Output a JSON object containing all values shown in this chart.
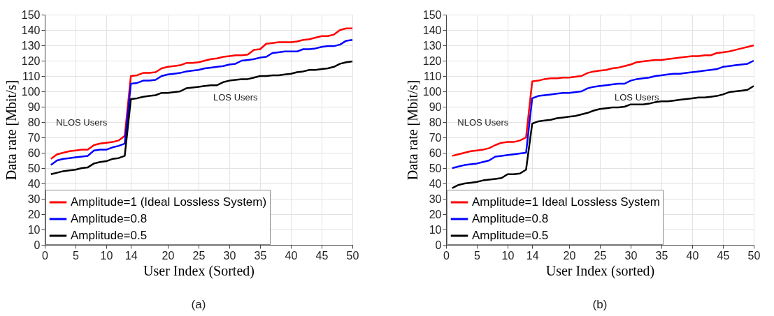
{
  "chart_data": [
    {
      "type": "line",
      "xlabel": "User Index (Sorted)",
      "ylabel": "Data rate [Mbit/s]",
      "x": [
        1,
        2,
        3,
        4,
        5,
        6,
        7,
        8,
        9,
        10,
        11,
        12,
        13,
        14,
        15,
        16,
        17,
        18,
        19,
        20,
        21,
        22,
        23,
        24,
        25,
        26,
        27,
        28,
        29,
        30,
        31,
        32,
        33,
        34,
        35,
        36,
        37,
        38,
        39,
        40,
        41,
        42,
        43,
        44,
        45,
        46,
        47,
        48,
        49,
        50
      ],
      "series": [
        {
          "name": "Amplitude=1 (Ideal Lossless System)",
          "color": "#ff0000",
          "values": [
            56,
            59,
            60,
            61,
            61.5,
            62,
            62,
            65,
            66,
            66.5,
            67,
            68,
            71,
            110,
            110.5,
            112,
            112,
            112.5,
            115,
            116,
            116.5,
            117,
            118.5,
            118.5,
            119,
            120,
            121,
            121.5,
            122.5,
            123,
            123.5,
            123.5,
            124,
            127,
            127.5,
            131,
            131.5,
            132,
            132,
            132,
            132.5,
            133.5,
            134,
            135,
            136,
            136,
            137,
            140,
            141,
            141
          ]
        },
        {
          "name": "Amplitude=0.8",
          "color": "#0000ff",
          "values": [
            52,
            55,
            56,
            56.5,
            57,
            57.5,
            58,
            61.5,
            62,
            62,
            63.5,
            64.5,
            66,
            105,
            105.5,
            107,
            107,
            107.5,
            110,
            111,
            111.5,
            112,
            113,
            113.5,
            114,
            115,
            115.5,
            116,
            116.5,
            117.5,
            118,
            120,
            120.5,
            121,
            122,
            122.5,
            125,
            125.5,
            126,
            126,
            126,
            127.5,
            127.5,
            128,
            129,
            129.5,
            129.5,
            130.5,
            133,
            133.5
          ]
        },
        {
          "name": "Amplitude=0.5",
          "color": "#000000",
          "values": [
            46,
            47,
            48,
            48.5,
            49,
            50,
            50.5,
            53,
            54,
            54.5,
            56,
            56.5,
            58,
            95,
            95.5,
            96.5,
            97,
            97.5,
            99,
            99,
            99.5,
            100,
            102,
            102.5,
            103,
            103.5,
            104,
            104,
            106,
            107,
            107.5,
            108,
            108,
            109,
            110,
            110,
            110.5,
            110.5,
            111,
            111.5,
            112.5,
            113,
            114,
            114,
            114.5,
            115,
            116,
            118,
            119,
            119.5
          ]
        }
      ],
      "xlim": [
        0,
        50
      ],
      "xticks": [
        0,
        5,
        10,
        14,
        20,
        25,
        30,
        35,
        40,
        45,
        50
      ],
      "ylim": [
        0,
        150
      ],
      "yticks": [
        0,
        10,
        20,
        30,
        40,
        50,
        60,
        70,
        80,
        90,
        100,
        110,
        120,
        130,
        140,
        150
      ],
      "grid": true,
      "legend": "bottom left",
      "annotations": [
        "NLOS Users",
        "LOS Users",
        "(a)"
      ]
    },
    {
      "type": "line",
      "xlabel": "User Index (sorted)",
      "ylabel": "Data rate [Mbit/s]",
      "x": [
        1,
        2,
        3,
        4,
        5,
        6,
        7,
        8,
        9,
        10,
        11,
        12,
        13,
        14,
        15,
        16,
        17,
        18,
        19,
        20,
        21,
        22,
        23,
        24,
        25,
        26,
        27,
        28,
        29,
        30,
        31,
        32,
        33,
        34,
        35,
        36,
        37,
        38,
        39,
        40,
        41,
        42,
        43,
        44,
        45,
        46,
        47,
        48,
        49,
        50
      ],
      "series": [
        {
          "name": "Amplitude=1 Ideal Lossless System",
          "color": "#ff0000",
          "values": [
            58,
            59,
            60,
            61,
            61.5,
            62,
            63,
            65,
            66.5,
            67,
            67,
            68,
            70,
            106.5,
            107,
            108,
            108.5,
            108.5,
            109,
            109,
            109.5,
            110,
            112,
            113,
            113.5,
            114,
            115,
            115.5,
            116.5,
            117.5,
            119,
            119.5,
            120,
            120.5,
            120.5,
            121,
            121.5,
            122,
            122.5,
            123,
            123,
            123.5,
            123.5,
            125,
            125.5,
            126,
            127,
            128,
            129,
            130
          ]
        },
        {
          "name": "Amplitude=0.8",
          "color": "#0000ff",
          "values": [
            50,
            51,
            52,
            52.5,
            53,
            54,
            55,
            57.5,
            58,
            58.5,
            59,
            59.5,
            60,
            95.5,
            97,
            97.5,
            98,
            98.5,
            99,
            99,
            99.5,
            100,
            102,
            103,
            103.5,
            104,
            104.5,
            105,
            105,
            107,
            108,
            108.5,
            109,
            110,
            110.5,
            111,
            111.5,
            111.5,
            112,
            112.5,
            113,
            113.5,
            114,
            114.5,
            116,
            116.5,
            117,
            117.5,
            118,
            120
          ]
        },
        {
          "name": "Amplitude=0.5",
          "color": "#000000",
          "values": [
            37,
            39,
            40,
            40.5,
            41,
            42,
            42.5,
            43,
            43.5,
            46,
            46,
            46.5,
            49,
            79,
            80.5,
            81,
            81.5,
            82.5,
            83,
            83.5,
            84,
            85,
            86,
            87.5,
            88.5,
            89,
            89.5,
            89.5,
            90,
            91.5,
            91.5,
            91.5,
            92,
            93,
            93.5,
            93.5,
            94,
            94.5,
            95,
            95.5,
            96,
            96,
            96.5,
            97,
            98,
            99.5,
            100,
            100.5,
            101,
            103.5
          ]
        }
      ],
      "xlim": [
        0,
        50
      ],
      "xticks": [
        0,
        5,
        10,
        14,
        20,
        25,
        30,
        35,
        40,
        45,
        50
      ],
      "ylim": [
        0,
        150
      ],
      "yticks": [
        0,
        10,
        20,
        30,
        40,
        50,
        60,
        70,
        80,
        90,
        100,
        110,
        120,
        130,
        140,
        150
      ],
      "grid": true,
      "legend": "bottom left",
      "annotations": [
        "NLOS Users",
        "LOS Users",
        "(b)"
      ]
    }
  ]
}
